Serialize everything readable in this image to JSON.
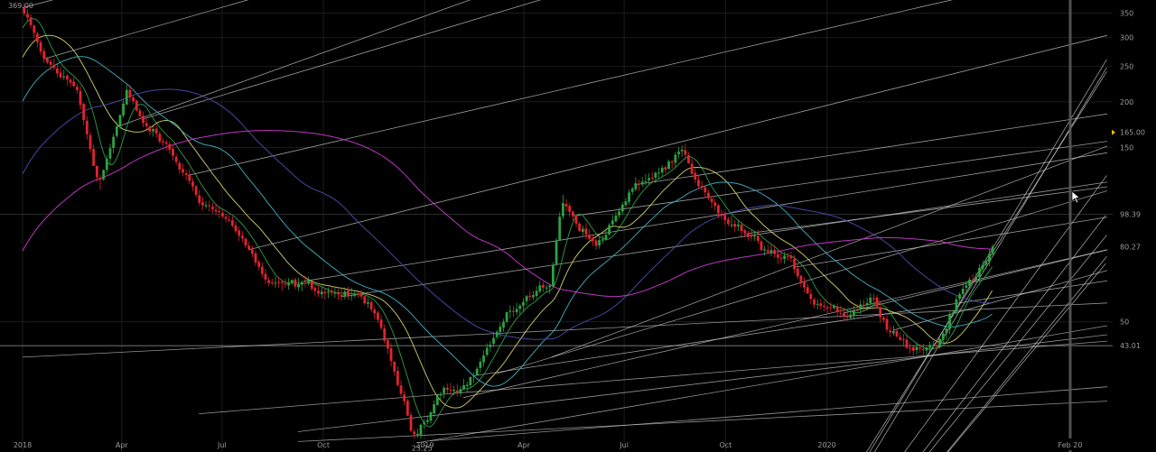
{
  "chart_data": {
    "type": "candlestick",
    "scale": "log",
    "ylim": [
      22,
      380
    ],
    "x_tick_labels": [
      "2018",
      "Apr",
      "Jul",
      "Oct",
      "2019",
      "Apr",
      "Jul",
      "Oct",
      "2020",
      "Feb 20"
    ],
    "y_tick_labels": [
      {
        "label": "350",
        "value": 350
      },
      {
        "label": "300",
        "value": 300
      },
      {
        "label": "250",
        "value": 250
      },
      {
        "label": "200",
        "value": 200
      },
      {
        "label": "150",
        "value": 150
      },
      {
        "label": "50",
        "value": 50
      }
    ],
    "price_tags": [
      {
        "label": "165.00",
        "value": 165
      },
      {
        "label": "98.39",
        "value": 98.39
      },
      {
        "label": "80.27",
        "value": 80.27
      },
      {
        "label": "43.01",
        "value": 43.01
      }
    ],
    "annotations": [
      {
        "text": "369.00",
        "value": 369
      },
      {
        "text": "23.25",
        "value": 23.25
      }
    ],
    "price_anchors": [
      {
        "d": 0,
        "v": 360
      },
      {
        "d": 20,
        "v": 260
      },
      {
        "d": 50,
        "v": 215
      },
      {
        "d": 70,
        "v": 120
      },
      {
        "d": 95,
        "v": 210
      },
      {
        "d": 110,
        "v": 175
      },
      {
        "d": 135,
        "v": 145
      },
      {
        "d": 160,
        "v": 110
      },
      {
        "d": 195,
        "v": 90
      },
      {
        "d": 225,
        "v": 62
      },
      {
        "d": 255,
        "v": 63
      },
      {
        "d": 285,
        "v": 60
      },
      {
        "d": 315,
        "v": 57
      },
      {
        "d": 340,
        "v": 35
      },
      {
        "d": 355,
        "v": 24
      },
      {
        "d": 380,
        "v": 33
      },
      {
        "d": 405,
        "v": 34
      },
      {
        "d": 430,
        "v": 46
      },
      {
        "d": 455,
        "v": 58
      },
      {
        "d": 480,
        "v": 63
      },
      {
        "d": 490,
        "v": 110
      },
      {
        "d": 520,
        "v": 80
      },
      {
        "d": 560,
        "v": 120
      },
      {
        "d": 590,
        "v": 135
      },
      {
        "d": 600,
        "v": 145
      },
      {
        "d": 610,
        "v": 120
      },
      {
        "d": 630,
        "v": 100
      },
      {
        "d": 660,
        "v": 85
      },
      {
        "d": 700,
        "v": 70
      },
      {
        "d": 720,
        "v": 57
      },
      {
        "d": 750,
        "v": 53
      },
      {
        "d": 770,
        "v": 58
      },
      {
        "d": 790,
        "v": 48
      },
      {
        "d": 810,
        "v": 42
      },
      {
        "d": 830,
        "v": 43
      },
      {
        "d": 850,
        "v": 58
      },
      {
        "d": 870,
        "v": 70
      },
      {
        "d": 880,
        "v": 82
      }
    ],
    "bands": [
      {
        "s": 0,
        "e": 0.26
      },
      {
        "s": 20,
        "e": 0.29
      },
      {
        "s": 85,
        "e": 0.36
      },
      {
        "s": 108,
        "e": 0.3
      },
      {
        "s": 150,
        "e": 0.23
      },
      {
        "s": 205,
        "e": 0.25
      },
      {
        "s": 255,
        "e": 0.16
      },
      {
        "s": 290,
        "e": 0.15
      },
      {
        "s": 410,
        "e": 0.15
      },
      {
        "s": 500,
        "e": 0.14
      },
      {
        "s": 555,
        "e": 0.15
      },
      {
        "s": 655,
        "e": 0.13
      },
      {
        "s": 700,
        "e": 0.16
      },
      {
        "s": 745,
        "e": 0.24
      },
      {
        "s": 790,
        "e": 0.28
      }
    ],
    "rays": [
      {
        "d": 0,
        "v": 40
      },
      {
        "d": 160,
        "v": 28
      },
      {
        "d": 250,
        "v": 25
      },
      {
        "d": 358,
        "v": 23.3
      },
      {
        "d": 400,
        "v": 31
      },
      {
        "d": 430,
        "v": 36
      },
      {
        "d": 480,
        "v": 40
      },
      {
        "d": 250,
        "v": 23.5
      },
      {
        "d": 370,
        "v": 23.6
      }
    ],
    "curves": [
      {
        "a": 548,
        "b": 2.0,
        "c": 0.011
      },
      {
        "a": 600,
        "b": 3.0,
        "c": 0.0115
      },
      {
        "a": 640,
        "b": 5.0,
        "c": 0.0115
      },
      {
        "a": 680,
        "b": 7.0,
        "c": 0.0095
      },
      {
        "a": 720,
        "b": 8.0,
        "c": 0.0085
      },
      {
        "a": 745,
        "b": 10.0,
        "c": 0.0083
      },
      {
        "a": 770,
        "b": 14.0,
        "c": 0.0085
      },
      {
        "a": 795,
        "b": 18.0,
        "c": 0.009
      }
    ],
    "series": [
      {
        "period": 20,
        "color": "#2f9e44"
      },
      {
        "period": 50,
        "color": "#d8d26a"
      },
      {
        "period": 100,
        "color": "#43b2c4"
      },
      {
        "period": 200,
        "color": "#4d4fb0"
      },
      {
        "period": 350,
        "color": "#d13cd6"
      }
    ]
  }
}
